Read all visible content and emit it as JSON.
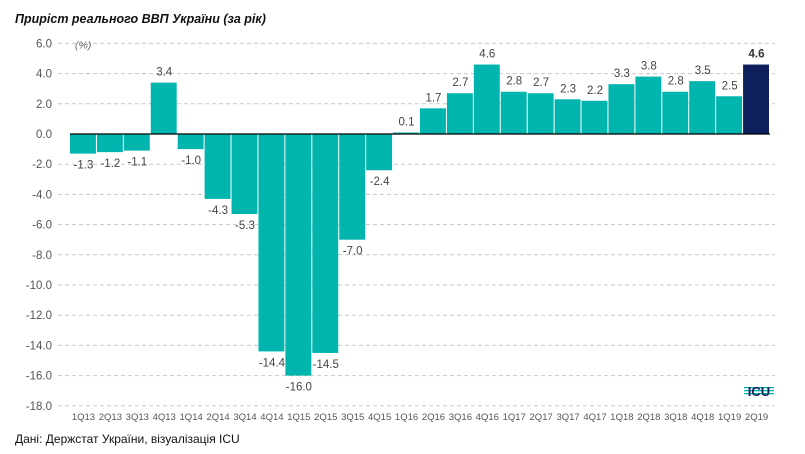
{
  "title": "Приріст реального ВВП України (за рік)",
  "source": "Дані: Держстат України, візуалізація ICU",
  "logo_text": "ICU",
  "colors": {
    "bar": "#00B5AD",
    "highlight": "#0D1F5C",
    "grid": "#c8c8c8",
    "zero": "#000000"
  },
  "chart_data": {
    "type": "bar",
    "title": "Приріст реального ВВП України (за рік)",
    "ylabel": "(%)",
    "xlabel": "",
    "ylim": [
      -18,
      6
    ],
    "yticks": [
      6,
      4,
      2,
      0,
      -2,
      -4,
      -6,
      -8,
      -10,
      -12,
      -14,
      -16,
      -18
    ],
    "ytick_labels": [
      "6.0",
      "4.0",
      "2.0",
      "0.0",
      "-2.0",
      "-4.0",
      "-6.0",
      "-8.0",
      "-10.0",
      "-12.0",
      "-14.0",
      "-16.0",
      "-18.0"
    ],
    "grid": true,
    "categories": [
      "1Q13",
      "2Q13",
      "3Q13",
      "4Q13",
      "1Q14",
      "2Q14",
      "3Q14",
      "4Q14",
      "1Q15",
      "2Q15",
      "3Q15",
      "4Q15",
      "1Q16",
      "2Q16",
      "3Q16",
      "4Q16",
      "1Q17",
      "2Q17",
      "3Q17",
      "4Q17",
      "1Q18",
      "2Q18",
      "3Q18",
      "4Q18",
      "1Q19",
      "2Q19"
    ],
    "values": [
      -1.3,
      -1.2,
      -1.1,
      3.4,
      -1.0,
      -4.3,
      -5.3,
      -14.4,
      -16.0,
      -14.5,
      -7.0,
      -2.4,
      0.1,
      1.7,
      2.7,
      4.6,
      2.8,
      2.7,
      2.3,
      2.2,
      3.3,
      3.8,
      2.8,
      3.5,
      2.5,
      4.6
    ],
    "data_labels": [
      "-1.3",
      "-1.2",
      "-1.1",
      "3.4",
      "-1.0",
      "-4.3",
      "-5.3",
      "-14.4",
      "-16.0",
      "-14.5",
      "-7.0",
      "-2.4",
      "0.1",
      "1.7",
      "2.7",
      "4.6",
      "2.8",
      "2.7",
      "2.3",
      "2.2",
      "3.3",
      "3.8",
      "2.8",
      "3.5",
      "2.5",
      "4.6"
    ],
    "highlight_index": 25
  }
}
